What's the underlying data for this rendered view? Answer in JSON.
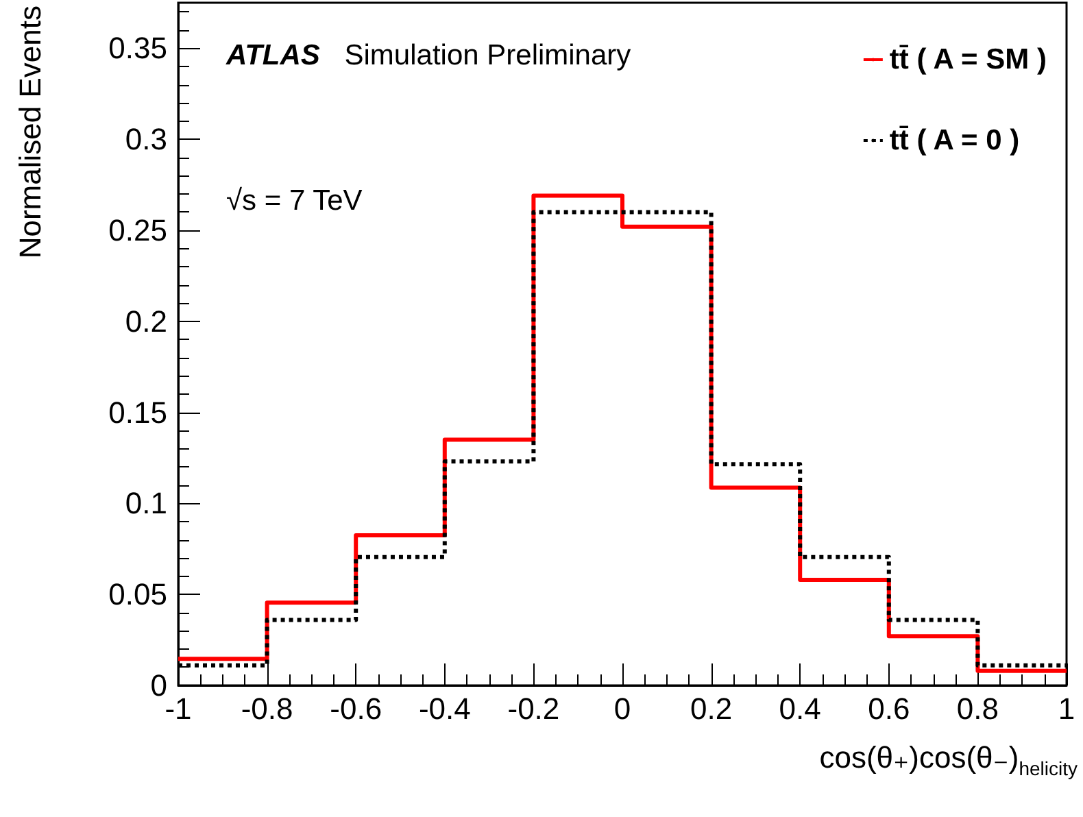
{
  "chart_data": {
    "type": "histogram",
    "xlabel": "cos(θ₊)cos(θ₋)$_{helicity}$",
    "ylabel": "Normalised Events",
    "annotations": [
      "ATLAS Simulation Preliminary",
      "√s = 7 TeV"
    ],
    "bins": [
      -1,
      -0.8,
      -0.6,
      -0.4,
      -0.2,
      0,
      0.2,
      0.4,
      0.6,
      0.8,
      1
    ],
    "series": [
      {
        "name": "tt̄ ( A = SM )",
        "color": "#ff0000",
        "line_style": "solid",
        "values": [
          0.0146,
          0.0455,
          0.0825,
          0.135,
          0.269,
          0.252,
          0.1086,
          0.058,
          0.027,
          0.008
        ]
      },
      {
        "name": "tt̄ ( A = 0 )",
        "color": "#000000",
        "line_style": "dotted",
        "values": [
          0.011,
          0.036,
          0.0705,
          0.123,
          0.26,
          0.26,
          0.1215,
          0.0705,
          0.036,
          0.011
        ]
      }
    ],
    "xlim": [
      -1,
      1
    ],
    "ylim": [
      0,
      0.375
    ],
    "xticks": [
      -1,
      -0.8,
      -0.6,
      -0.4,
      -0.2,
      0,
      0.2,
      0.4,
      0.6,
      0.8,
      1
    ],
    "yticks": [
      0,
      0.05,
      0.1,
      0.15,
      0.2,
      0.25,
      0.3,
      0.35
    ],
    "grid": false,
    "legend": "top right",
    "marker": "none"
  }
}
